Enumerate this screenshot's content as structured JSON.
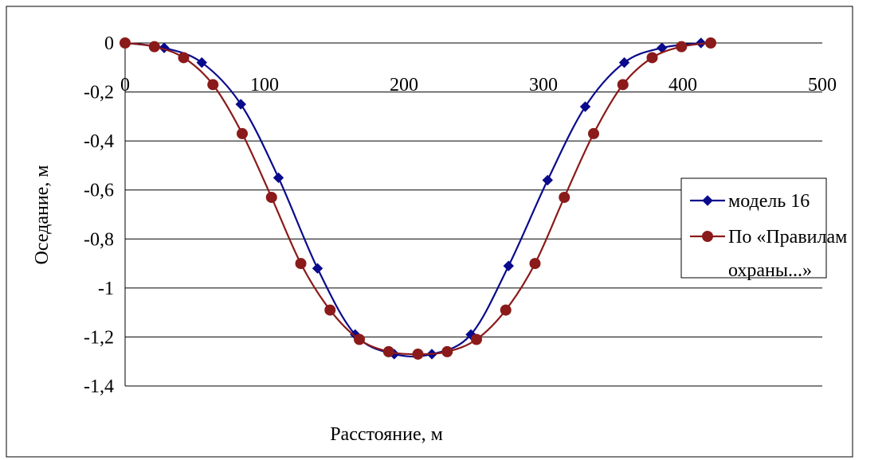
{
  "chart_data": {
    "type": "line",
    "title": "",
    "xlabel": "Расстояние, м",
    "ylabel": "Оседание, м",
    "xlim": [
      0,
      500
    ],
    "ylim": [
      -1.4,
      0
    ],
    "x_ticks": [
      "0",
      "100",
      "200",
      "300",
      "400",
      "500"
    ],
    "y_ticks": [
      "0",
      "-0,2",
      "-0,4",
      "-0,6",
      "-0,8",
      "-1",
      "-1,2",
      "-1,4"
    ],
    "grid": "horizontal",
    "legend_position": "right",
    "series": [
      {
        "name": "модель 16",
        "color": "#0a0a8c",
        "marker": "diamond",
        "x": [
          0,
          28,
          55,
          83,
          110,
          138,
          165,
          193,
          220,
          248,
          275,
          303,
          330,
          358,
          385,
          413
        ],
        "y": [
          0,
          -0.02,
          -0.08,
          -0.25,
          -0.55,
          -0.92,
          -1.19,
          -1.27,
          -1.27,
          -1.19,
          -0.91,
          -0.56,
          -0.26,
          -0.08,
          -0.02,
          0
        ]
      },
      {
        "name": "По «Правилам охраны...»",
        "color": "#8b1a1a",
        "marker": "circle",
        "x": [
          0,
          21,
          42,
          63,
          84,
          105,
          126,
          147,
          168,
          189,
          210,
          231,
          252,
          273,
          294,
          315,
          336,
          357,
          378,
          399,
          420
        ],
        "y": [
          0,
          -0.015,
          -0.06,
          -0.17,
          -0.37,
          -0.63,
          -0.9,
          -1.09,
          -1.21,
          -1.26,
          -1.27,
          -1.26,
          -1.21,
          -1.09,
          -0.9,
          -0.63,
          -0.37,
          -0.17,
          -0.06,
          -0.015,
          0
        ]
      }
    ]
  }
}
